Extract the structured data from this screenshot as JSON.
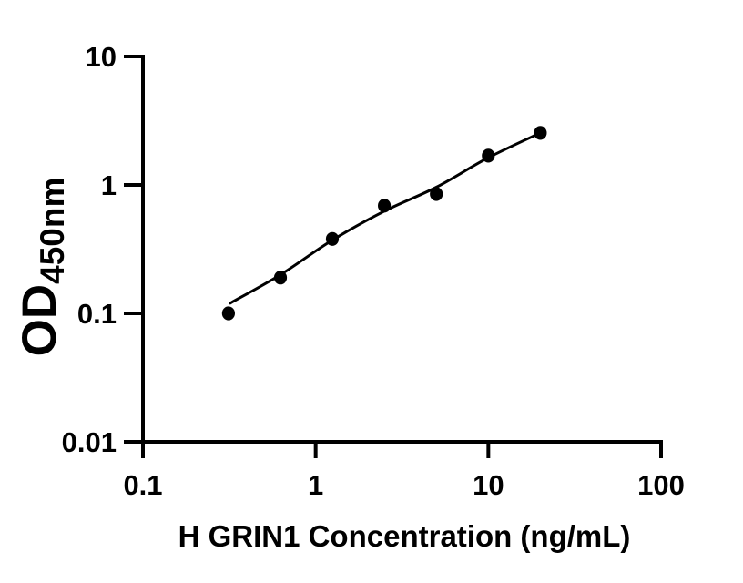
{
  "figure": {
    "background_color": "#ffffff",
    "ink_color": "#000000"
  },
  "chart_data": {
    "type": "scatter",
    "title": "",
    "xlabel": "H GRIN1 Concentration (ng/mL)",
    "ylabel_main": "OD",
    "ylabel_sub": "450nm",
    "x_scale": "log",
    "y_scale": "log",
    "xlim": [
      0.1,
      100
    ],
    "ylim": [
      0.01,
      10
    ],
    "x_ticks": [
      "0.1",
      "1",
      "10",
      "100"
    ],
    "y_ticks": [
      "10",
      "1",
      "0.1",
      "0.01"
    ],
    "grid": false,
    "legend": false,
    "series": [
      {
        "name": "standard-points",
        "marker": "filled-circle",
        "color": "#000000",
        "points": [
          [
            0.3125,
            0.1
          ],
          [
            0.625,
            0.19
          ],
          [
            1.25,
            0.38
          ],
          [
            2.5,
            0.69
          ],
          [
            5,
            0.85
          ],
          [
            10,
            1.69
          ],
          [
            20,
            2.54
          ]
        ]
      }
    ],
    "fit_curve": {
      "name": "fitted-standard-curve",
      "color": "#000000",
      "points": [
        [
          0.32,
          0.12
        ],
        [
          0.625,
          0.2
        ],
        [
          1.25,
          0.372
        ],
        [
          2.5,
          0.625
        ],
        [
          5,
          0.96
        ],
        [
          10,
          1.63
        ],
        [
          20,
          2.54
        ]
      ]
    }
  }
}
